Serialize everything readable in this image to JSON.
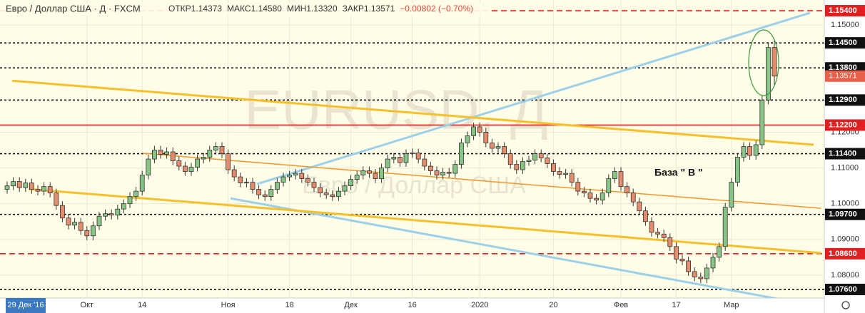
{
  "chart_data": {
    "type": "candlestick",
    "title": "Евро / Доллар США · Д · FXCM",
    "ohlc_texts": [
      "ОТКР1.14373",
      "МАКС1.14580",
      "МИН1.13320",
      "ЗАКР1.13571",
      "−0.00802 (−0.70%)"
    ],
    "watermark": [
      "EURUSD, Д",
      "Евро / Доллар США"
    ],
    "annotation": "База  \" В \"",
    "crosshair_label": "29 Дек '16",
    "up_color": "#86c586",
    "down_color": "#e58c6c",
    "categories": [
      null,
      null,
      null,
      null,
      null,
      null,
      null,
      null,
      null,
      null,
      null,
      null,
      null,
      "Окт",
      null,
      null,
      null,
      null,
      null,
      null,
      null,
      null,
      "14",
      null,
      null,
      null,
      null,
      null,
      null,
      null,
      null,
      null,
      null,
      null,
      null,
      null,
      "Ноя",
      null,
      null,
      null,
      null,
      null,
      null,
      null,
      null,
      null,
      "18",
      null,
      null,
      null,
      null,
      null,
      null,
      null,
      null,
      null,
      "Дек",
      null,
      null,
      null,
      null,
      null,
      null,
      null,
      null,
      null,
      "16",
      null,
      null,
      null,
      null,
      null,
      null,
      null,
      null,
      null,
      null,
      "2020",
      null,
      null,
      null,
      null,
      null,
      null,
      null,
      null,
      null,
      null,
      null,
      "20",
      null,
      null,
      null,
      null,
      null,
      null,
      null,
      null,
      null,
      null,
      "Фев",
      null,
      null,
      null,
      null,
      null,
      null,
      null,
      null,
      "17",
      null,
      null,
      null,
      null,
      null,
      null,
      null,
      null,
      "Мар",
      null,
      null,
      null,
      null,
      null,
      null,
      null
    ],
    "candles": [
      [
        1.104,
        1.1062,
        1.1028,
        1.105
      ],
      [
        1.105,
        1.1074,
        1.1038,
        1.1062
      ],
      [
        1.1062,
        1.1074,
        1.1033,
        1.1045
      ],
      [
        1.1045,
        1.107,
        1.1033,
        1.1058
      ],
      [
        1.1058,
        1.107,
        1.1028,
        1.104
      ],
      [
        1.104,
        1.1052,
        1.1023,
        1.1035
      ],
      [
        1.1035,
        1.106,
        1.1023,
        1.1048
      ],
      [
        1.1048,
        1.106,
        1.1018,
        1.103
      ],
      [
        1.103,
        1.1042,
        1.0983,
        1.0995
      ],
      [
        1.0995,
        1.1007,
        1.0948,
        1.096
      ],
      [
        1.096,
        1.0972,
        1.0928,
        1.094
      ],
      [
        1.094,
        1.096,
        1.0928,
        1.0948
      ],
      [
        1.0948,
        1.096,
        1.0913,
        1.0925
      ],
      [
        1.0925,
        1.0937,
        1.0898,
        1.091
      ],
      [
        1.091,
        1.095,
        1.0898,
        1.0938
      ],
      [
        1.0938,
        1.0977,
        1.0926,
        1.0965
      ],
      [
        1.0965,
        1.0984,
        1.0953,
        1.0972
      ],
      [
        1.0972,
        1.0984,
        1.0956,
        1.0968
      ],
      [
        1.0968,
        1.0997,
        1.0956,
        1.0985
      ],
      [
        1.0985,
        1.1012,
        1.0973,
        1.1
      ],
      [
        1.1,
        1.1032,
        1.0988,
        1.102
      ],
      [
        1.102,
        1.1047,
        1.1008,
        1.1035
      ],
      [
        1.1035,
        1.1092,
        1.1023,
        1.108
      ],
      [
        1.108,
        1.1137,
        1.1068,
        1.1125
      ],
      [
        1.1125,
        1.1162,
        1.1113,
        1.115
      ],
      [
        1.115,
        1.1162,
        1.1126,
        1.1138
      ],
      [
        1.1138,
        1.1157,
        1.1126,
        1.1145
      ],
      [
        1.1145,
        1.1157,
        1.1108,
        1.112
      ],
      [
        1.112,
        1.1132,
        1.1093,
        1.1105
      ],
      [
        1.1105,
        1.1117,
        1.1078,
        1.109
      ],
      [
        1.109,
        1.1114,
        1.1078,
        1.1102
      ],
      [
        1.1102,
        1.1137,
        1.109,
        1.1125
      ],
      [
        1.1125,
        1.1142,
        1.1113,
        1.113
      ],
      [
        1.113,
        1.1162,
        1.1118,
        1.115
      ],
      [
        1.115,
        1.1172,
        1.1138,
        1.116
      ],
      [
        1.116,
        1.1172,
        1.1128,
        1.114
      ],
      [
        1.114,
        1.1152,
        1.1083,
        1.1095
      ],
      [
        1.1095,
        1.1107,
        1.1063,
        1.1075
      ],
      [
        1.1075,
        1.1087,
        1.1046,
        1.1058
      ],
      [
        1.1058,
        1.1072,
        1.1046,
        1.106
      ],
      [
        1.106,
        1.1072,
        1.1028,
        1.104
      ],
      [
        1.104,
        1.1052,
        1.1013,
        1.1025
      ],
      [
        1.1025,
        1.1037,
        1.1008,
        1.102
      ],
      [
        1.102,
        1.1052,
        1.1008,
        1.104
      ],
      [
        1.104,
        1.1072,
        1.1028,
        1.106
      ],
      [
        1.106,
        1.1087,
        1.1048,
        1.1075
      ],
      [
        1.1075,
        1.1092,
        1.1063,
        1.108
      ],
      [
        1.108,
        1.1097,
        1.1068,
        1.1085
      ],
      [
        1.1085,
        1.1097,
        1.1058,
        1.107
      ],
      [
        1.107,
        1.1082,
        1.1048,
        1.106
      ],
      [
        1.106,
        1.1072,
        1.1033,
        1.1045
      ],
      [
        1.1045,
        1.1057,
        1.1018,
        1.103
      ],
      [
        1.103,
        1.1042,
        1.1013,
        1.1025
      ],
      [
        1.1025,
        1.1037,
        1.1008,
        1.102
      ],
      [
        1.102,
        1.1047,
        1.1008,
        1.1035
      ],
      [
        1.1035,
        1.1062,
        1.1023,
        1.105
      ],
      [
        1.105,
        1.108,
        1.1038,
        1.1068
      ],
      [
        1.1068,
        1.1092,
        1.1056,
        1.108
      ],
      [
        1.108,
        1.1104,
        1.1068,
        1.1092
      ],
      [
        1.1092,
        1.1104,
        1.1073,
        1.1085
      ],
      [
        1.1085,
        1.1097,
        1.1058,
        1.107
      ],
      [
        1.107,
        1.1112,
        1.1058,
        1.11
      ],
      [
        1.11,
        1.1137,
        1.1088,
        1.1125
      ],
      [
        1.1125,
        1.1142,
        1.1113,
        1.113
      ],
      [
        1.113,
        1.1142,
        1.1103,
        1.1115
      ],
      [
        1.1115,
        1.1152,
        1.1103,
        1.114
      ],
      [
        1.114,
        1.1154,
        1.1128,
        1.1142
      ],
      [
        1.1142,
        1.1154,
        1.1113,
        1.1125
      ],
      [
        1.1125,
        1.1137,
        1.1093,
        1.1105
      ],
      [
        1.1105,
        1.1117,
        1.108,
        1.1092
      ],
      [
        1.1092,
        1.1104,
        1.1068,
        1.108
      ],
      [
        1.108,
        1.11,
        1.1068,
        1.1088
      ],
      [
        1.1088,
        1.11,
        1.1073,
        1.1085
      ],
      [
        1.1085,
        1.1122,
        1.1073,
        1.111
      ],
      [
        1.111,
        1.1182,
        1.1098,
        1.117
      ],
      [
        1.117,
        1.1202,
        1.1158,
        1.119
      ],
      [
        1.119,
        1.1227,
        1.1178,
        1.1215
      ],
      [
        1.1215,
        1.1227,
        1.1188,
        1.12
      ],
      [
        1.12,
        1.1212,
        1.1158,
        1.117
      ],
      [
        1.117,
        1.1182,
        1.1143,
        1.1155
      ],
      [
        1.1155,
        1.1172,
        1.1143,
        1.116
      ],
      [
        1.116,
        1.1172,
        1.1128,
        1.114
      ],
      [
        1.114,
        1.1152,
        1.1098,
        1.111
      ],
      [
        1.111,
        1.1122,
        1.1083,
        1.1095
      ],
      [
        1.1095,
        1.113,
        1.1083,
        1.1118
      ],
      [
        1.1118,
        1.1134,
        1.1106,
        1.1122
      ],
      [
        1.1122,
        1.1152,
        1.111,
        1.114
      ],
      [
        1.114,
        1.1152,
        1.1116,
        1.1128
      ],
      [
        1.1128,
        1.114,
        1.11,
        1.1112
      ],
      [
        1.1112,
        1.1124,
        1.1078,
        1.109
      ],
      [
        1.109,
        1.1102,
        1.107,
        1.1082
      ],
      [
        1.1082,
        1.1097,
        1.107,
        1.1085
      ],
      [
        1.1085,
        1.1097,
        1.1048,
        1.106
      ],
      [
        1.106,
        1.1072,
        1.1023,
        1.1035
      ],
      [
        1.1035,
        1.1047,
        1.1018,
        1.103
      ],
      [
        1.103,
        1.1042,
        1.1003,
        1.1015
      ],
      [
        1.1015,
        1.1027,
        1.0998,
        1.101
      ],
      [
        1.101,
        1.1042,
        1.0998,
        1.103
      ],
      [
        1.103,
        1.1082,
        1.1018,
        1.107
      ],
      [
        1.107,
        1.1102,
        1.1058,
        1.109
      ],
      [
        1.109,
        1.1102,
        1.1036,
        1.1048
      ],
      [
        1.1048,
        1.106,
        1.1018,
        1.103
      ],
      [
        1.103,
        1.1042,
        1.0993,
        1.1005
      ],
      [
        1.1005,
        1.1017,
        1.0968,
        1.098
      ],
      [
        1.098,
        1.0992,
        1.0938,
        1.095
      ],
      [
        1.095,
        1.0962,
        1.0908,
        1.092
      ],
      [
        1.092,
        1.0932,
        1.0903,
        1.0915
      ],
      [
        1.0915,
        1.0927,
        1.0893,
        1.0905
      ],
      [
        1.0905,
        1.0917,
        1.0868,
        1.088
      ],
      [
        1.088,
        1.0892,
        1.0833,
        1.0845
      ],
      [
        1.0845,
        1.0857,
        1.0828,
        1.084
      ],
      [
        1.084,
        1.0852,
        1.0798,
        1.081
      ],
      [
        1.081,
        1.0822,
        1.0783,
        1.0795
      ],
      [
        1.0795,
        1.0807,
        1.0778,
        1.079
      ],
      [
        1.079,
        1.0832,
        1.0778,
        1.082
      ],
      [
        1.082,
        1.0862,
        1.0808,
        1.085
      ],
      [
        1.085,
        1.0892,
        1.0838,
        1.088
      ],
      [
        1.088,
        1.1002,
        1.0868,
        1.099
      ],
      [
        1.099,
        1.1072,
        1.0978,
        1.106
      ],
      [
        1.106,
        1.1142,
        1.1048,
        1.113
      ],
      [
        1.113,
        1.1172,
        1.1118,
        1.116
      ],
      [
        1.116,
        1.1172,
        1.1123,
        1.1135
      ],
      [
        1.1135,
        1.1177,
        1.1123,
        1.1165
      ],
      [
        1.1165,
        1.1302,
        1.1153,
        1.129
      ],
      [
        1.129,
        1.145,
        1.1278,
        1.1437
      ],
      [
        1.14373,
        1.1458,
        1.1332,
        1.13571
      ]
    ],
    "ylim": [
      1.0736,
      1.157
    ],
    "yticks": [
      {
        "value": 1.15,
        "label": "1.15000"
      },
      {
        "value": 1.12,
        "label": "1.12000"
      },
      {
        "value": 1.11,
        "label": "1.11000"
      },
      {
        "value": 1.1,
        "label": "1.10000"
      },
      {
        "value": 1.09,
        "label": "1.09000"
      },
      {
        "value": 1.08,
        "label": "1.08000"
      }
    ],
    "levels": [
      {
        "value": 1.154,
        "label": "1.15400",
        "color": "#e02020",
        "style": "dashed"
      },
      {
        "value": 1.145,
        "label": "1.14500",
        "color": "#111111",
        "style": "dotted"
      },
      {
        "value": 1.138,
        "label": "1.13800",
        "color": "#111111",
        "style": "dotted"
      },
      {
        "value": 1.129,
        "label": "1.12900",
        "color": "#111111",
        "style": "dotted"
      },
      {
        "value": 1.122,
        "label": "1.12200",
        "color": "#e02020",
        "style": "solid"
      },
      {
        "value": 1.114,
        "label": "1.11400",
        "color": "#111111",
        "style": "dotted"
      },
      {
        "value": 1.097,
        "label": "1.09700",
        "color": "#111111",
        "style": "dotted"
      },
      {
        "value": 1.086,
        "label": "1.08600",
        "color": "#e02020",
        "style": "dashed"
      },
      {
        "value": 1.076,
        "label": "1.07600",
        "color": "#111111",
        "style": "dotted"
      }
    ],
    "last_price": {
      "value": 1.13571,
      "label": "1.13571",
      "color": "#e8604a"
    },
    "trendlines": [
      {
        "color": "#9ccfe8",
        "width": 3,
        "points": [
          [
            40.7,
            1.1055
          ],
          [
            130.8,
            1.1534
          ]
        ]
      },
      {
        "color": "#9ccfe8",
        "width": 3,
        "points": [
          [
            36.4,
            1.1015
          ],
          [
            131.2,
            1.0716
          ]
        ]
      },
      {
        "color": "#f5c02a",
        "width": 3,
        "points": [
          [
            0.8,
            1.1344
          ],
          [
            131.4,
            1.1165
          ]
        ]
      },
      {
        "color": "#f5c02a",
        "width": 3,
        "points": [
          [
            3.5,
            1.1041
          ],
          [
            132.6,
            1.0862
          ]
        ]
      },
      {
        "color": "#f0962a",
        "width": 1.5,
        "points": [
          [
            22.1,
            1.1141
          ],
          [
            132.6,
            1.0987
          ]
        ]
      }
    ]
  }
}
